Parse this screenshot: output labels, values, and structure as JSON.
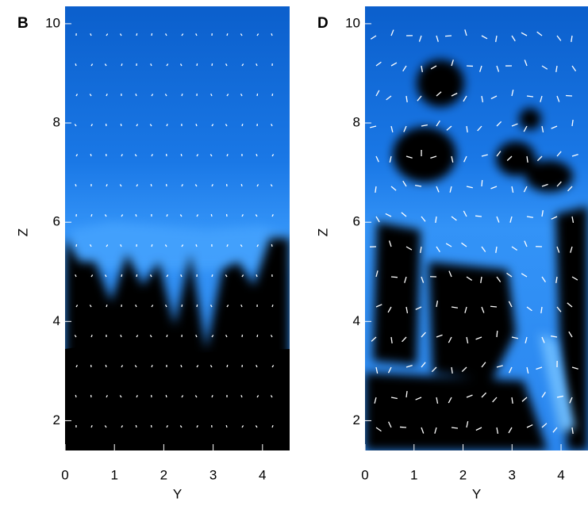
{
  "chart_data": [
    {
      "type": "field",
      "panel_label": "B",
      "xlabel": "Y",
      "ylabel": "Z",
      "xlim": [
        0,
        4.55
      ],
      "ylim": [
        1.4,
        10.35
      ],
      "xticks": [
        0,
        1,
        2,
        3,
        4
      ],
      "yticks": [
        2,
        4,
        6,
        8,
        10
      ]
    },
    {
      "type": "field",
      "panel_label": "D",
      "xlabel": "Y",
      "ylabel": "Z",
      "xlim": [
        0,
        4.55
      ],
      "ylim": [
        1.4,
        10.35
      ],
      "xticks": [
        0,
        1,
        2,
        3,
        4
      ],
      "yticks": [
        2,
        4,
        6,
        8,
        10
      ]
    }
  ]
}
